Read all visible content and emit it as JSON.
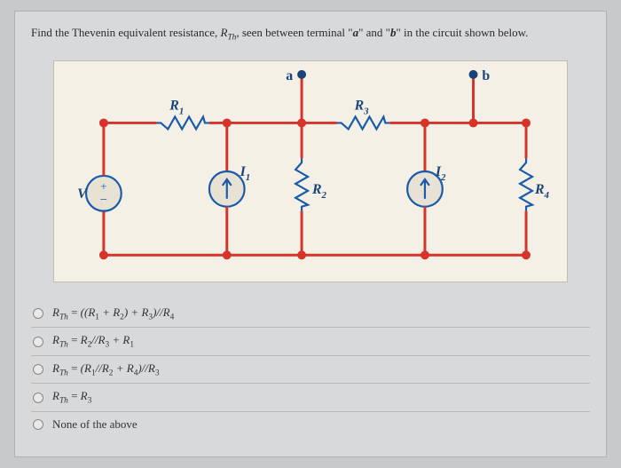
{
  "question": {
    "prefix": "Find the Thevenin equivalent resistance, ",
    "var": "R",
    "varsub": "Th",
    "mid": ", seen between terminal \"",
    "termA": "a",
    "mid2": "\" and \"",
    "termB": "b",
    "suffix": "\" in the circuit shown below."
  },
  "circuit": {
    "background": "#f5f0e6",
    "wire_color": "#d6342a",
    "wire_width": 3,
    "node_color": "#d6342a",
    "node_radius": 5,
    "comp_color": "#1a5aa8",
    "comp_width": 2.2,
    "label_color": "#19447a",
    "label_font": "bold 15px Georgia",
    "labels": {
      "V": "V",
      "R1": "R",
      "R1sub": "1",
      "R2": "R",
      "R2sub": "2",
      "R3": "R",
      "R3sub": "3",
      "R4": "R",
      "R4sub": "4",
      "I1": "I",
      "I1sub": "1",
      "I2": "I",
      "I2sub": "2",
      "a": "a",
      "b": "b"
    }
  },
  "options": [
    {
      "html": "R<sub class='it'>Th</sub> <span class='rm'>=</span> ((R<sub>1</sub> + R<sub>2</sub>) + R<sub>3</sub>)//R<sub>4</sub>"
    },
    {
      "html": "R<sub class='it'>Th</sub> <span class='rm'>=</span> R<sub>2</sub>//R<sub>3</sub> + R<sub>1</sub>"
    },
    {
      "html": "R<sub class='it'>Th</sub> <span class='rm'>=</span> (R<sub>1</sub>//R<sub>2</sub> + R<sub>4</sub>)//R<sub>3</sub>"
    },
    {
      "html": "R<sub class='it'>Th</sub> <span class='rm'>=</span> R<sub>3</sub>"
    },
    {
      "html": "<span class='rm'>None of the above</span>"
    }
  ]
}
